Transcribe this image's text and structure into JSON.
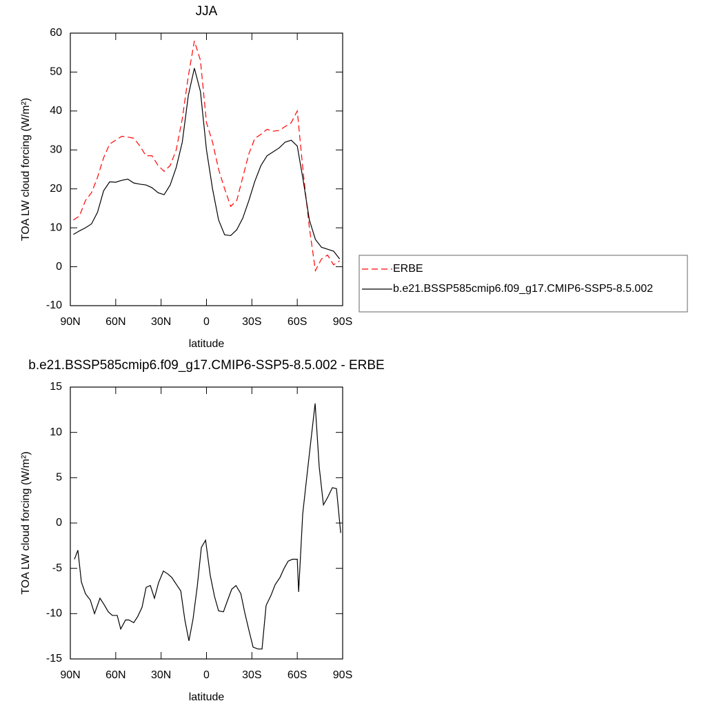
{
  "chart_data": [
    {
      "type": "line",
      "title": "JJA",
      "x_label": "latitude",
      "y_label": "TOA LW cloud forcing (W/m²)",
      "x": [
        88,
        84,
        80,
        76,
        72,
        68,
        64,
        60,
        56,
        52,
        48,
        44,
        40,
        36,
        32,
        28,
        24,
        20,
        16,
        12,
        8,
        4,
        0,
        -4,
        -8,
        -12,
        -16,
        -20,
        -24,
        -28,
        -32,
        -36,
        -40,
        -44,
        -48,
        -52,
        -56,
        -60,
        -64,
        -68,
        -72,
        -76,
        -80,
        -84,
        -88
      ],
      "series": [
        {
          "name": "ERBE",
          "color": "#ff0000",
          "dashed": true,
          "values": [
            12,
            13,
            17,
            19,
            23,
            28,
            31.5,
            32.5,
            33.5,
            33.3,
            33,
            31,
            28.5,
            28.5,
            26,
            24.5,
            26,
            30,
            38,
            49,
            58,
            53,
            37,
            32,
            25,
            20,
            15.5,
            17,
            23,
            29,
            33,
            34,
            35.3,
            34.8,
            35,
            36,
            37,
            40,
            24,
            10,
            -1,
            2,
            3,
            0.5,
            1.5
          ]
        },
        {
          "name": "b.e21.BSSP585cmip6.f09_g17.CMIP6-SSP5-8.5.002",
          "color": "#000000",
          "dashed": false,
          "values": [
            8.3,
            9.2,
            10,
            11,
            14,
            19.5,
            21.8,
            21.7,
            22.2,
            22.5,
            21.5,
            21.2,
            21,
            20.3,
            19,
            18.5,
            21,
            25.5,
            32,
            44,
            51,
            45,
            30,
            20,
            12,
            8.2,
            8,
            9.5,
            12.5,
            17,
            22,
            26,
            28.5,
            29.5,
            30.5,
            32,
            32.5,
            31,
            22,
            12,
            7,
            5,
            4.5,
            4,
            2
          ]
        }
      ],
      "xlim": [
        90,
        -90
      ],
      "ylim": [
        -10,
        60
      ],
      "xticks": [
        {
          "value": 90,
          "label": "90N"
        },
        {
          "value": 60,
          "label": "60N"
        },
        {
          "value": 30,
          "label": "30N"
        },
        0,
        {
          "value": -30,
          "label": "30S"
        },
        {
          "value": -60,
          "label": "60S"
        },
        {
          "value": -90,
          "label": "90S"
        }
      ],
      "yticks": [
        -10,
        0,
        10,
        20,
        30,
        40,
        50,
        60
      ],
      "legend": "right"
    },
    {
      "type": "line",
      "title": "b.e21.BSSP585cmip6.f09_g17.CMIP6-SSP5-8.5.002 - ERBE",
      "x_label": "latitude",
      "y_label": "TOA LW cloud forcing (W/m²)",
      "x": [
        87.3,
        85.0,
        82.7,
        80.0,
        76.8,
        74.0,
        70.4,
        67.7,
        64.9,
        62.2,
        59.0,
        56.7,
        53.5,
        51.3,
        48.1,
        45.4,
        42.6,
        39.9,
        37.1,
        34.4,
        31.7,
        28.5,
        25.7,
        23.0,
        19.8,
        17.0,
        14.3,
        11.6,
        8.9,
        6.1,
        3.4,
        0.6,
        -2.5,
        -5.3,
        -8.0,
        -11.2,
        -14.0,
        -16.7,
        -19.5,
        -22.7,
        -25.3,
        -28.0,
        -30.8,
        -34.0,
        -36.7,
        -39.4,
        -42.6,
        -45.4,
        -48.6,
        -51.3,
        -54.0,
        -56.8,
        -60.0,
        -60.9,
        -63.6,
        -65.9,
        -68.6,
        -71.8,
        -74.5,
        -77.3,
        -80.0,
        -83.2,
        -85.9,
        -88.7
      ],
      "series": [
        {
          "color": "#000000",
          "dashed": false,
          "values": [
            -4,
            -3,
            -6.5,
            -7.8,
            -8.5,
            -10,
            -8.3,
            -9,
            -9.8,
            -10.2,
            -10.2,
            -11.7,
            -10.7,
            -10.7,
            -11,
            -10.3,
            -9.3,
            -7.1,
            -6.9,
            -8.3,
            -6.6,
            -5.3,
            -5.6,
            -6,
            -6.8,
            -7.5,
            -10.7,
            -13,
            -10.6,
            -7,
            -2.7,
            -1.9,
            -5.8,
            -8.1,
            -9.7,
            -9.8,
            -8.5,
            -7.3,
            -6.9,
            -7.8,
            -9.9,
            -11.8,
            -13.7,
            -13.9,
            -13.9,
            -9.1,
            -8,
            -6.8,
            -6,
            -5,
            -4.2,
            -4,
            -4,
            -7.6,
            1,
            4.5,
            8.5,
            13.2,
            6.2,
            2,
            2.8,
            3.9,
            3.8,
            -1.1
          ]
        }
      ],
      "xlim": [
        90,
        -90
      ],
      "ylim": [
        -15,
        15
      ],
      "xticks": [
        {
          "value": 90,
          "label": "90N"
        },
        {
          "value": 60,
          "label": "60N"
        },
        {
          "value": 30,
          "label": "30N"
        },
        0,
        {
          "value": -30,
          "label": "30S"
        },
        {
          "value": -60,
          "label": "60S"
        },
        {
          "value": -90,
          "label": "90S"
        }
      ],
      "yticks": [
        -15,
        -10,
        -5,
        0,
        5,
        10,
        15
      ]
    }
  ]
}
